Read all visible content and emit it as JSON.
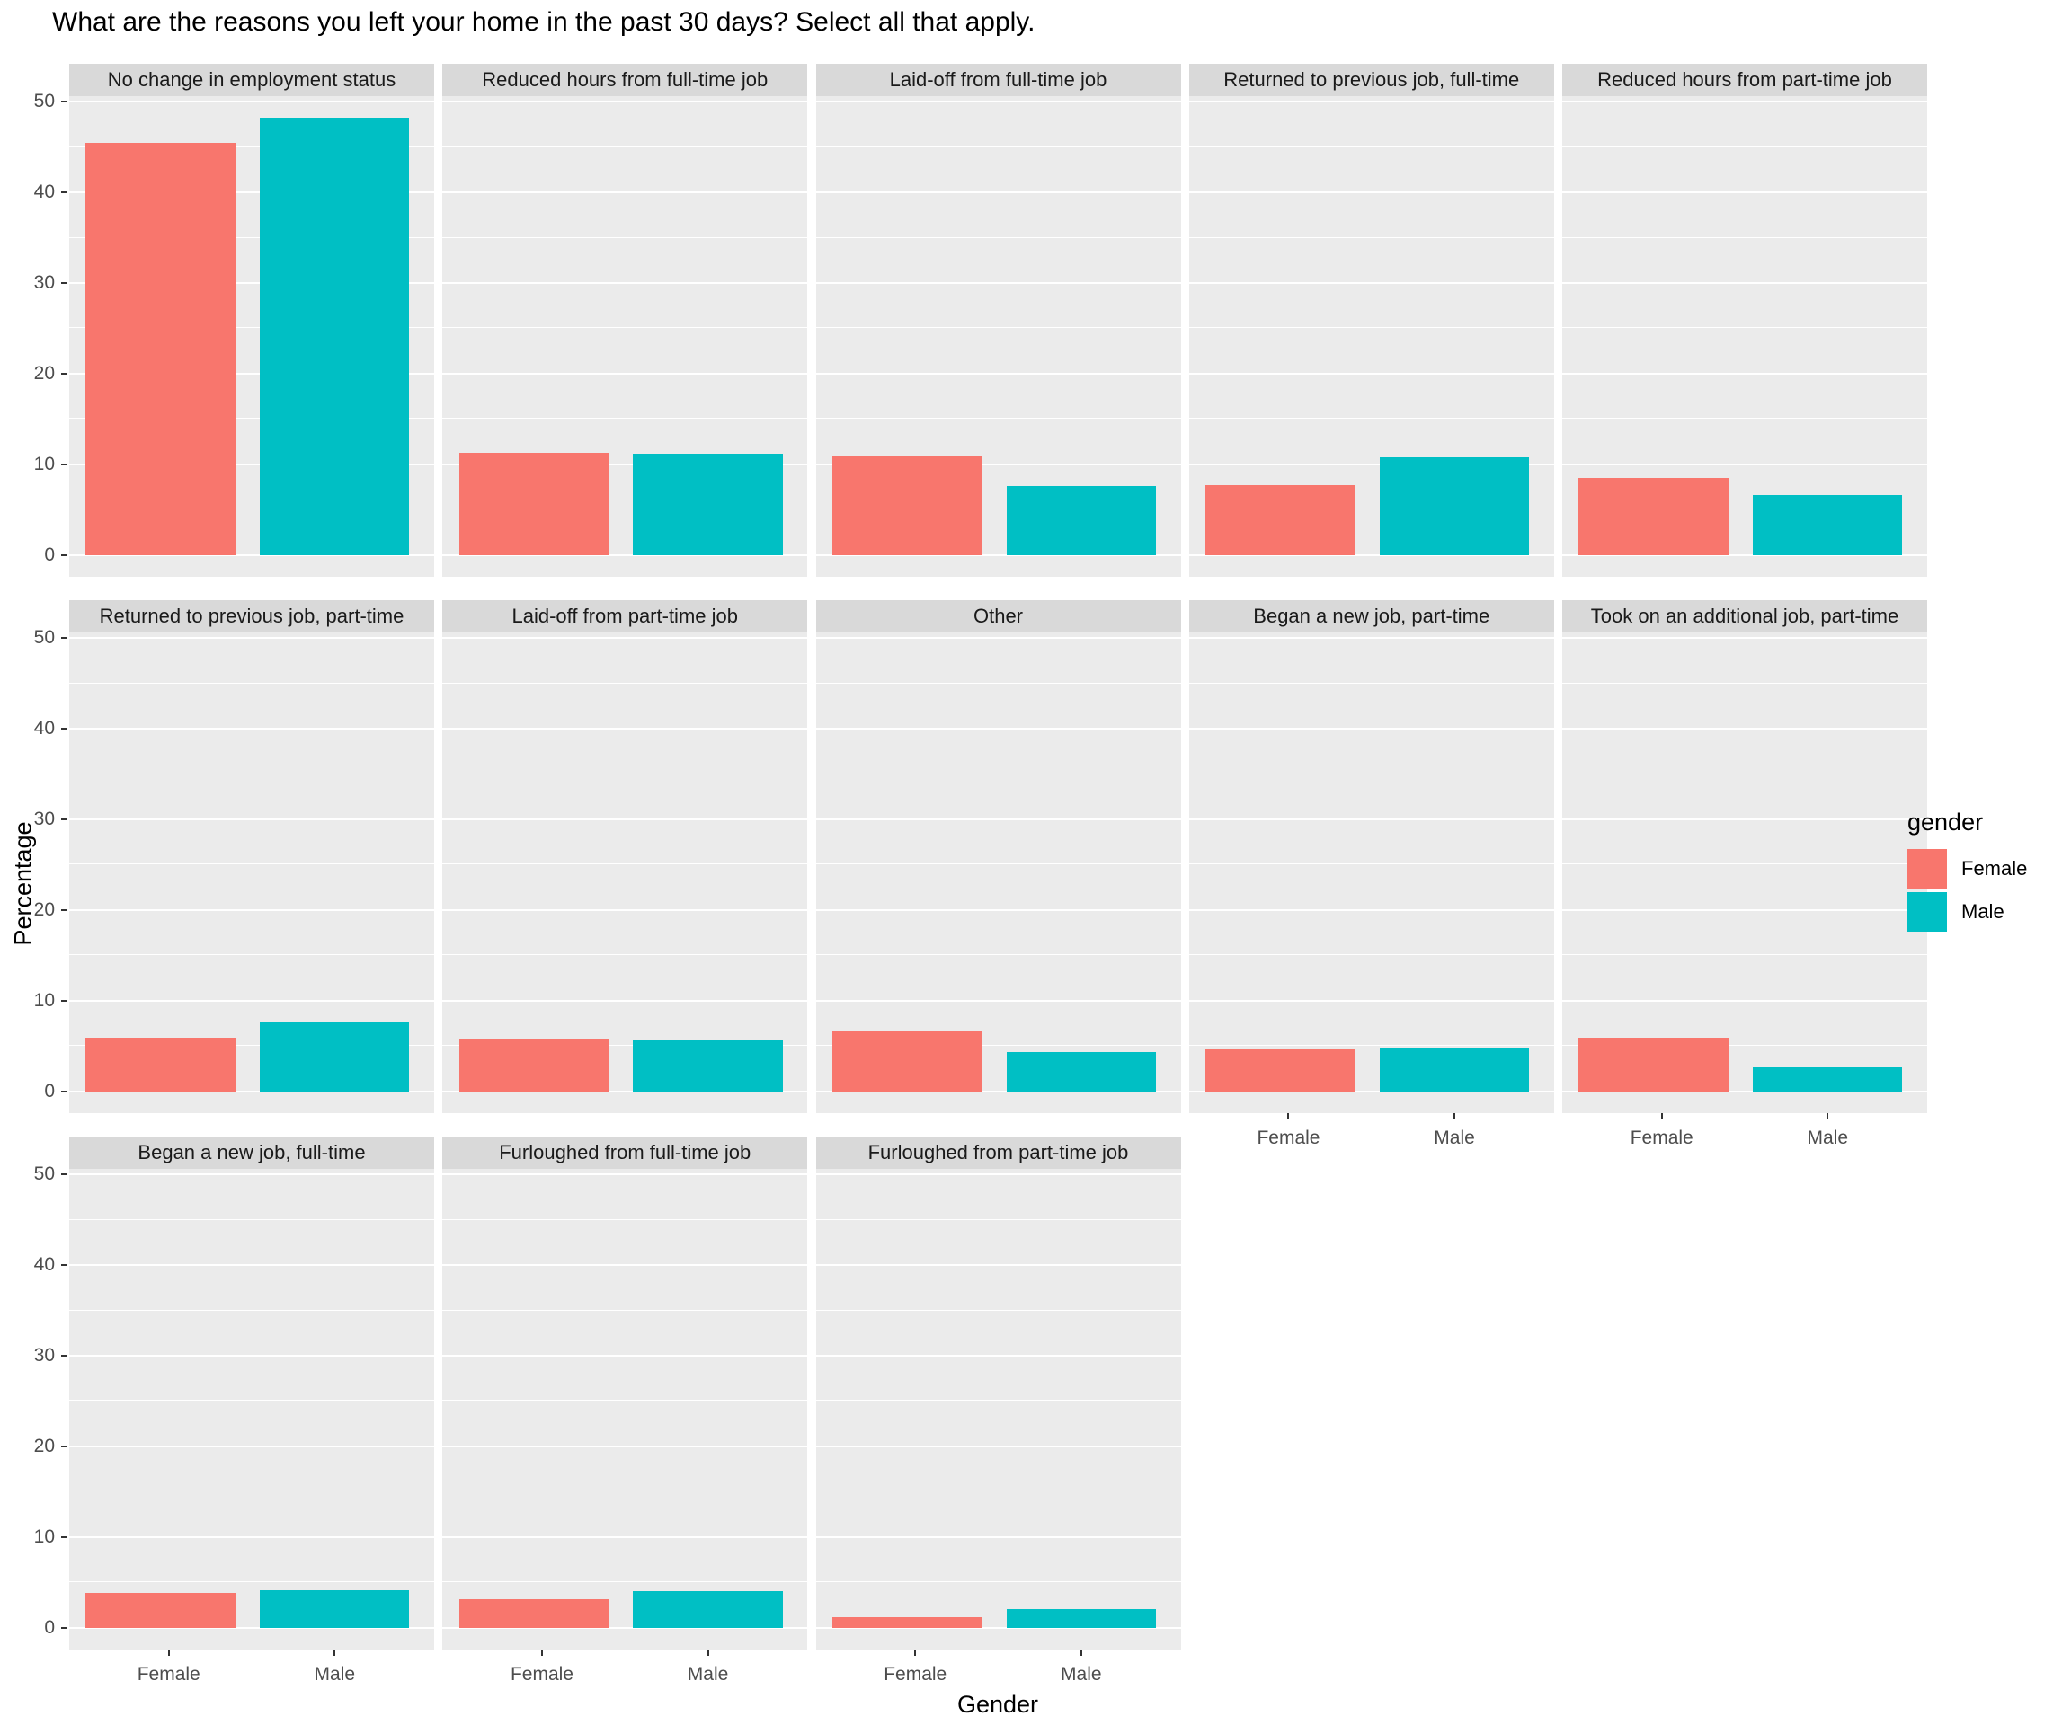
{
  "title": "What are the reasons you left your home in the past 30 days? Select all that apply.",
  "chart_data": {
    "type": "bar",
    "faceted": true,
    "facet_layout": {
      "rows": 3,
      "cols": 5
    },
    "categories": [
      "Female",
      "Male"
    ],
    "xlabel": "Gender",
    "ylabel": "Percentage",
    "ylim": [
      0,
      50
    ],
    "y_ticks": [
      0,
      10,
      20,
      30,
      40,
      50
    ],
    "y_minor_ticks": [
      5,
      15,
      25,
      35,
      45
    ],
    "grid": true,
    "legend": {
      "title": "gender",
      "position": "right",
      "entries": [
        {
          "label": "Female",
          "color": "#F8766D"
        },
        {
          "label": "Male",
          "color": "#00BFC4"
        }
      ]
    },
    "facets": [
      {
        "label": "No change in employment status",
        "values": [
          45.5,
          48.2
        ]
      },
      {
        "label": "Reduced hours from full-time job",
        "values": [
          11.3,
          11.2
        ]
      },
      {
        "label": "Laid-off from full-time job",
        "values": [
          11.0,
          7.6
        ]
      },
      {
        "label": "Returned to previous job, full-time",
        "values": [
          7.7,
          10.8
        ]
      },
      {
        "label": "Reduced hours from part-time job",
        "values": [
          8.5,
          6.6
        ]
      },
      {
        "label": "Returned to previous job, part-time",
        "values": [
          5.9,
          7.7
        ]
      },
      {
        "label": "Laid-off from part-time job",
        "values": [
          5.7,
          5.6
        ]
      },
      {
        "label": "Other",
        "values": [
          6.7,
          4.3
        ]
      },
      {
        "label": "Began a new job, part-time",
        "values": [
          4.6,
          4.7
        ]
      },
      {
        "label": "Took on an additional job, part-time",
        "values": [
          5.9,
          2.6
        ]
      },
      {
        "label": "Began a new job, full-time",
        "values": [
          3.8,
          4.1
        ]
      },
      {
        "label": "Furloughed from full-time job",
        "values": [
          3.1,
          4.0
        ]
      },
      {
        "label": "Furloughed from part-time job",
        "values": [
          1.2,
          2.1
        ]
      }
    ],
    "colors": {
      "female_bar": "#F8766D",
      "male_bar": "#00BFC4",
      "panel_background": "#EBEBEB",
      "strip_background": "#D9D9D9",
      "gridline": "#FFFFFF",
      "tick_text": "#4D4D4D"
    }
  }
}
